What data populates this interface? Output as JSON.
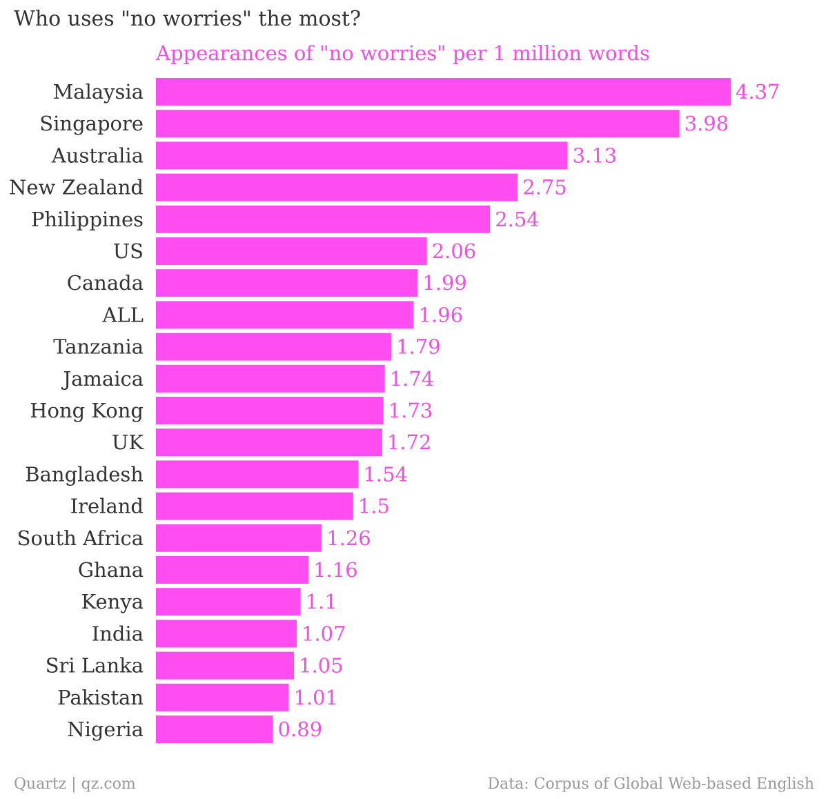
{
  "header": {
    "title": "Who uses \"no worries\" the most?"
  },
  "footer": {
    "source_left": "Quartz | qz.com",
    "source_right": "Data: Corpus of Global Web-based English"
  },
  "colors": {
    "bar": "#ff4df2",
    "accent_text": "#f24ee2",
    "title_text": "#333333",
    "footer_text": "#9a9a9a"
  },
  "chart_data": {
    "type": "bar",
    "orientation": "horizontal",
    "title": "Appearances of \"no worries\" per 1 million words",
    "categories": [
      "Malaysia",
      "Singapore",
      "Australia",
      "New Zealand",
      "Philippines",
      "US",
      "Canada",
      "ALL",
      "Tanzania",
      "Jamaica",
      "Hong Kong",
      "UK",
      "Bangladesh",
      "Ireland",
      "South Africa",
      "Ghana",
      "Kenya",
      "India",
      "Sri Lanka",
      "Pakistan",
      "Nigeria"
    ],
    "values": [
      4.37,
      3.98,
      3.13,
      2.75,
      2.54,
      2.06,
      1.99,
      1.96,
      1.79,
      1.74,
      1.73,
      1.72,
      1.54,
      1.5,
      1.26,
      1.16,
      1.1,
      1.07,
      1.05,
      1.01,
      0.89
    ],
    "value_labels": [
      "4.37",
      "3.98",
      "3.13",
      "2.75",
      "2.54",
      "2.06",
      "1.99",
      "1.96",
      "1.79",
      "1.74",
      "1.73",
      "1.72",
      "1.54",
      "1.5",
      "1.26",
      "1.16",
      "1.1",
      "1.07",
      "1.05",
      "1.01",
      "0.89"
    ],
    "xlim": [
      0,
      4.37
    ],
    "grid": false,
    "legend": "none",
    "data_labels": "outside-end"
  }
}
